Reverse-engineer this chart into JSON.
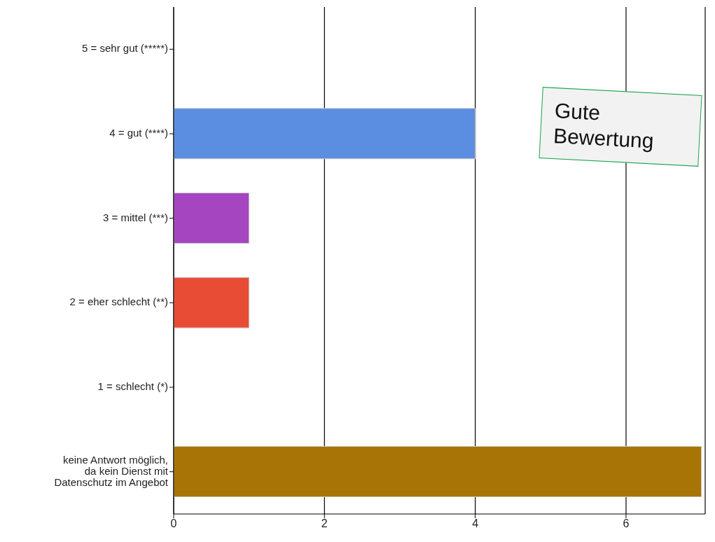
{
  "chart_data": {
    "type": "bar",
    "orientation": "horizontal",
    "categories": [
      "5 = sehr gut (*****)",
      "4 = gut (****)",
      "3 = mittel (***)",
      "2 = eher schlecht (**)",
      "1 = schlecht (*)",
      "keine Antwort möglich, da kein Dienst mit Datenschutz im Angebot"
    ],
    "values": [
      0,
      4,
      1,
      1,
      0,
      7
    ],
    "colors": [
      null,
      "#5b8de0",
      "#a546c0",
      "#e84c35",
      null,
      "#a87406"
    ],
    "xlim": [
      0,
      7.05
    ],
    "xticks": [
      0,
      2,
      4,
      6
    ],
    "grid": "x",
    "annotations": [
      "Gute Bewertung"
    ]
  }
}
